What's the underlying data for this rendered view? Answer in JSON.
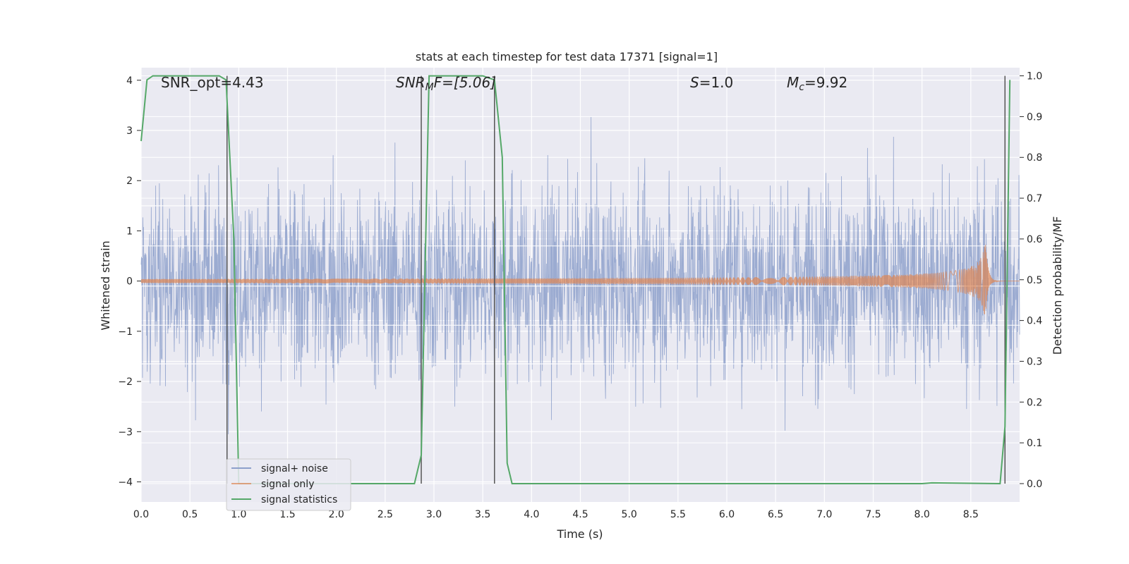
{
  "chart_data": {
    "type": "line",
    "title": "stats at each timestep for test data 17371 [signal=1]",
    "xlabel": "Time (s)",
    "ylabel": "Whitened strain",
    "y2label": "Detection probability/MF",
    "xlim": [
      0.0,
      9.0
    ],
    "ylim": [
      -4.4,
      4.25
    ],
    "y2lim": [
      -0.045,
      1.02
    ],
    "x_ticks": [
      "0.0",
      "0.5",
      "1.0",
      "1.5",
      "2.0",
      "2.5",
      "3.0",
      "3.5",
      "4.0",
      "4.5",
      "5.0",
      "5.5",
      "6.0",
      "6.5",
      "7.0",
      "7.5",
      "8.0",
      "8.5"
    ],
    "y_ticks": [
      "4",
      "3",
      "2",
      "1",
      "0",
      "−1",
      "−2",
      "−3",
      "−4"
    ],
    "y2_ticks": [
      "1.0",
      "0.9",
      "0.8",
      "0.7",
      "0.6",
      "0.5",
      "0.4",
      "0.3",
      "0.2",
      "0.1",
      "0.0"
    ],
    "grid": true,
    "legend_position": "lower-left",
    "annotations": {
      "snr_opt": "SNR_opt=4.43",
      "snr_mf_italic": "SNR",
      "snr_mf_sub": "M",
      "snr_mf_rest": "F=[5.06]",
      "s_italic": "S",
      "s_rest": "=1.0",
      "mc_italic": "M",
      "mc_sub": "c",
      "mc_rest": "=9.92"
    },
    "series": [
      {
        "name": "signal+ noise",
        "color": "#8da0cb",
        "noise_envelope": [
          -4.0,
          4.0
        ]
      },
      {
        "name": "signal only",
        "color": "#dd8452",
        "chirp_end_time": 8.65,
        "peak_amplitude": 0.85
      },
      {
        "name": "signal statistics",
        "color": "#55a868",
        "axis": "right",
        "x": [
          0.0,
          0.06,
          0.12,
          0.5,
          0.8,
          0.87,
          0.95,
          1.0,
          2.8,
          2.87,
          2.95,
          3.0,
          3.5,
          3.62,
          3.7,
          3.75,
          3.8,
          8.0,
          8.1,
          8.8,
          8.85,
          8.9
        ],
        "y": [
          0.84,
          0.99,
          1.0,
          1.0,
          1.0,
          0.99,
          0.6,
          0.0,
          0.0,
          0.07,
          1.0,
          1.0,
          1.0,
          0.99,
          0.8,
          0.05,
          0.0,
          0.0,
          0.002,
          0.0,
          0.14,
          0.99
        ]
      }
    ],
    "vertical_lines": [
      0.88,
      2.87,
      3.62,
      8.85
    ]
  }
}
